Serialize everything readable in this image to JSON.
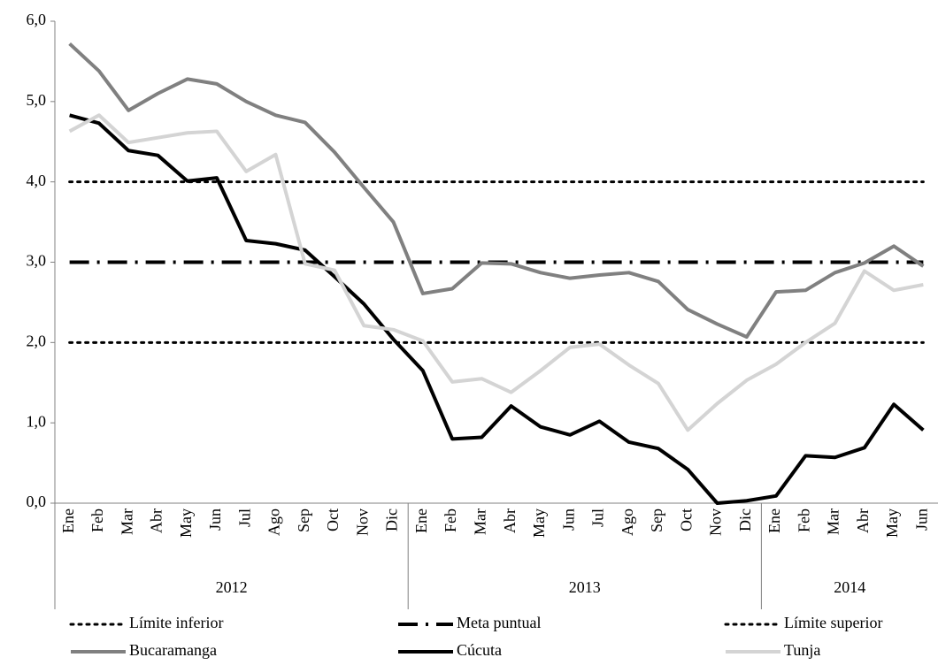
{
  "chart_data": {
    "type": "line",
    "categories": [
      "Ene",
      "Feb",
      "Mar",
      "Abr",
      "May",
      "Jun",
      "Jul",
      "Ago",
      "Sep",
      "Oct",
      "Nov",
      "Dic",
      "Ene",
      "Feb",
      "Mar",
      "Abr",
      "May",
      "Jun",
      "Jul",
      "Ago",
      "Sep",
      "Oct",
      "Nov",
      "Dic",
      "Ene",
      "Feb",
      "Mar",
      "Abr",
      "May",
      "Jun"
    ],
    "year_groups": [
      {
        "label": "2012",
        "count": 12
      },
      {
        "label": "2013",
        "count": 12
      },
      {
        "label": "2014",
        "count": 6
      }
    ],
    "ylim": [
      0,
      6
    ],
    "yticks": [
      {
        "value": 0,
        "label": "0,0"
      },
      {
        "value": 1,
        "label": "1,0"
      },
      {
        "value": 2,
        "label": "2,0"
      },
      {
        "value": 3,
        "label": "3,0"
      },
      {
        "value": 4,
        "label": "4,0"
      },
      {
        "value": 5,
        "label": "5,0"
      },
      {
        "value": 6,
        "label": "6,0"
      }
    ],
    "grid": false,
    "legend": "bottom",
    "series": [
      {
        "name": "Límite inferior",
        "color": "#000000",
        "style": "dotted",
        "values": [
          2,
          2,
          2,
          2,
          2,
          2,
          2,
          2,
          2,
          2,
          2,
          2,
          2,
          2,
          2,
          2,
          2,
          2,
          2,
          2,
          2,
          2,
          2,
          2,
          2,
          2,
          2,
          2,
          2,
          2
        ]
      },
      {
        "name": "Meta puntual",
        "color": "#000000",
        "style": "dashdot",
        "values": [
          3,
          3,
          3,
          3,
          3,
          3,
          3,
          3,
          3,
          3,
          3,
          3,
          3,
          3,
          3,
          3,
          3,
          3,
          3,
          3,
          3,
          3,
          3,
          3,
          3,
          3,
          3,
          3,
          3,
          3
        ]
      },
      {
        "name": "Límite superior",
        "color": "#000000",
        "style": "dotted",
        "values": [
          4,
          4,
          4,
          4,
          4,
          4,
          4,
          4,
          4,
          4,
          4,
          4,
          4,
          4,
          4,
          4,
          4,
          4,
          4,
          4,
          4,
          4,
          4,
          4,
          4,
          4,
          4,
          4,
          4,
          4
        ]
      },
      {
        "name": "Bucaramanga",
        "color": "#808080",
        "style": "solid",
        "values": [
          5.72,
          5.38,
          4.89,
          5.1,
          5.28,
          5.22,
          5.0,
          4.83,
          4.74,
          4.37,
          3.93,
          3.5,
          2.61,
          2.67,
          2.99,
          2.98,
          2.87,
          2.8,
          2.84,
          2.87,
          2.76,
          2.41,
          2.23,
          2.07,
          2.63,
          2.65,
          2.87,
          2.99,
          3.2,
          2.95
        ]
      },
      {
        "name": "Cúcuta",
        "color": "#000000",
        "style": "solid",
        "values": [
          4.83,
          4.73,
          4.39,
          4.33,
          4.01,
          4.05,
          3.27,
          3.23,
          3.15,
          2.82,
          2.48,
          2.04,
          1.65,
          0.8,
          0.82,
          1.21,
          0.95,
          0.85,
          1.02,
          0.76,
          0.68,
          0.42,
          0.0,
          0.03,
          0.09,
          0.59,
          0.57,
          0.69,
          1.23,
          0.91
        ]
      },
      {
        "name": "Tunja",
        "color": "#d4d4d4",
        "style": "solid",
        "values": [
          4.63,
          4.83,
          4.49,
          4.55,
          4.61,
          4.63,
          4.13,
          4.34,
          2.98,
          2.9,
          2.21,
          2.16,
          2.02,
          1.51,
          1.55,
          1.38,
          1.65,
          1.94,
          1.98,
          1.72,
          1.49,
          0.91,
          1.24,
          1.53,
          1.73,
          2.0,
          2.24,
          2.89,
          2.65,
          2.72
        ]
      }
    ]
  }
}
